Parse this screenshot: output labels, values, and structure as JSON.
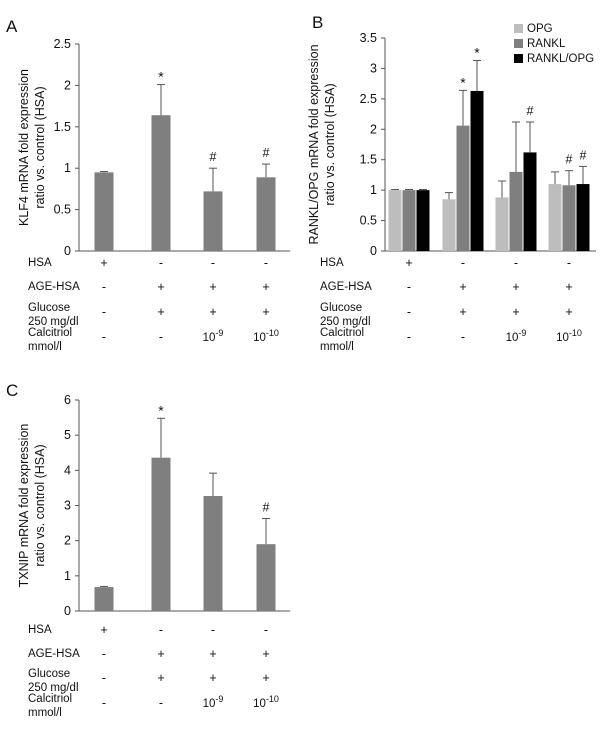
{
  "figure": {
    "panels": [
      {
        "letter": "A"
      },
      {
        "letter": "B"
      },
      {
        "letter": "C"
      }
    ]
  },
  "conditions": {
    "rows": [
      "HSA",
      "AGE-HSA",
      "Glucose",
      "250 mg/dl",
      "Calcitriol",
      "mmol/l"
    ],
    "hsa": [
      "+",
      "-",
      "-",
      "-"
    ],
    "age_hsa": [
      "-",
      "+",
      "+",
      "+"
    ],
    "glucose": [
      "-",
      "+",
      "+",
      "+"
    ],
    "calcitriol": [
      "-",
      "-",
      "10",
      "10"
    ],
    "calcitriol_exp": [
      "",
      "",
      "-9",
      "-10"
    ]
  },
  "colors": {
    "opg": "#bdbdbd",
    "rankl": "#7f7f7f",
    "ratio": "#000000",
    "gray_bar": "#7f7f7f"
  },
  "chart_data": [
    {
      "type": "bar",
      "panel": "A",
      "ylabel_lines": [
        "KLF4 mRNA fold expression",
        "ratio vs. control (HSA)"
      ],
      "ylim": [
        0,
        2.5
      ],
      "yticks": [
        "0",
        "0.5",
        "1",
        "1.5",
        "2",
        "2.5"
      ],
      "categories": [
        "1",
        "2",
        "3",
        "4"
      ],
      "values": [
        0.95,
        1.64,
        0.72,
        0.89
      ],
      "errors": [
        0.01,
        0.37,
        0.28,
        0.16
      ],
      "annotations": [
        "",
        "*",
        "#",
        "#"
      ]
    },
    {
      "type": "bar",
      "panel": "B",
      "ylabel_lines": [
        "RANKL/OPG mRNA fold expression",
        "ratio vs. control (HSA)"
      ],
      "ylim": [
        0,
        3.5
      ],
      "yticks": [
        "0",
        "0.5",
        "1",
        "1.5",
        "2",
        "2.5",
        "3",
        "3.5"
      ],
      "categories": [
        "1",
        "2",
        "3",
        "4"
      ],
      "legend": [
        "OPG",
        "RANKL",
        "RANKL/OPG"
      ],
      "series": [
        {
          "name": "OPG",
          "values": [
            1.0,
            0.85,
            0.88,
            1.1
          ],
          "errors": [
            0.01,
            0.11,
            0.27,
            0.2
          ],
          "annotations": [
            "",
            "",
            "",
            ""
          ]
        },
        {
          "name": "RANKL",
          "values": [
            1.0,
            2.06,
            1.3,
            1.08
          ],
          "errors": [
            0.01,
            0.58,
            0.82,
            0.24
          ],
          "annotations": [
            "",
            "*",
            "",
            "#"
          ]
        },
        {
          "name": "RANKL/OPG",
          "values": [
            1.0,
            2.63,
            1.62,
            1.1
          ],
          "errors": [
            0.01,
            0.5,
            0.5,
            0.29
          ],
          "annotations": [
            "",
            "*",
            "#",
            "#"
          ]
        }
      ]
    },
    {
      "type": "bar",
      "panel": "C",
      "ylabel_lines": [
        "TXNIP mRNA fold expression",
        "ratio vs. control (HSA)"
      ],
      "ylim": [
        0,
        6
      ],
      "yticks": [
        "0",
        "1",
        "2",
        "3",
        "4",
        "5",
        "6"
      ],
      "categories": [
        "1",
        "2",
        "3",
        "4"
      ],
      "values": [
        0.68,
        4.36,
        3.27,
        1.9
      ],
      "errors": [
        0.02,
        1.12,
        0.65,
        0.73
      ],
      "annotations": [
        "",
        "*",
        "",
        "#"
      ]
    }
  ]
}
